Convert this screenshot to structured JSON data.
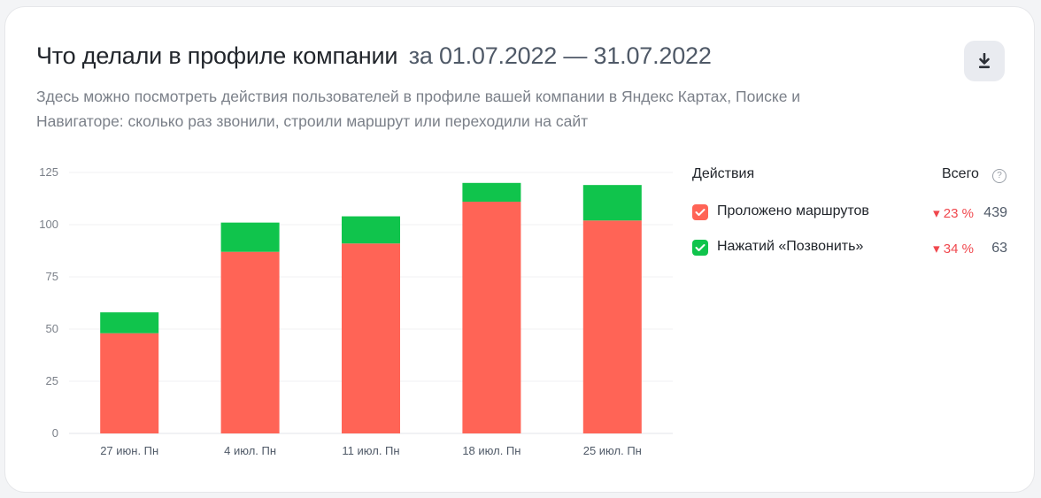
{
  "header": {
    "title": "Что делали в профиле компании",
    "period": "за 01.07.2022 — 31.07.2022",
    "description": "Здесь можно посмотреть действия пользователей в профиле вашей компании в Яндекс Картах, Поиске и Навигаторе: сколько раз звонили, строили маршрут или переходили на сайт"
  },
  "download_icon": "download-icon",
  "legend": {
    "title": "Действия",
    "total_label": "Всего",
    "help_icon": "question-circle-icon",
    "items": [
      {
        "name": "Проложено маршрутов",
        "delta": "23 %",
        "total": "439",
        "color": "#ff6456",
        "trend": "down"
      },
      {
        "name": "Нажатий «Позвонить»",
        "delta": "34 %",
        "total": "63",
        "color": "#10c44c",
        "trend": "down"
      }
    ]
  },
  "chart_data": {
    "type": "bar",
    "stacked": true,
    "categories": [
      "27 июн. Пн",
      "4 июл. Пн",
      "11 июл. Пн",
      "18 июл. Пн",
      "25 июл. Пн"
    ],
    "series": [
      {
        "name": "Проложено маршрутов",
        "color": "#ff6456",
        "values": [
          48,
          87,
          91,
          111,
          102
        ]
      },
      {
        "name": "Нажатий «Позвонить»",
        "color": "#10c44c",
        "values": [
          10,
          14,
          13,
          9,
          17
        ]
      }
    ],
    "y_ticks": [
      "0",
      "25",
      "50",
      "75",
      "100",
      "125"
    ],
    "ylim": [
      0,
      125
    ],
    "grid": true,
    "legend_position": "right"
  }
}
